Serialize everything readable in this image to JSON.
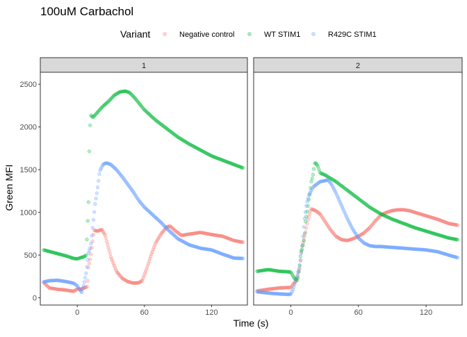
{
  "chart_data": {
    "type": "scatter",
    "title": "100uM Carbachol",
    "xlabel": "Time (s)",
    "ylabel": "Green MFI",
    "legend": {
      "title": "Variant",
      "position": "top"
    },
    "x_range": [
      -33,
      152
    ],
    "y_range": [
      -85,
      2640
    ],
    "x_ticks": [
      0,
      60,
      120
    ],
    "y_ticks": [
      0,
      500,
      1000,
      1500,
      2000,
      2500
    ],
    "grid": false,
    "panels": [
      {
        "label": "1",
        "series": [
          {
            "name": "Negative control",
            "color": "#F8766D",
            "curve": [
              [
                -30,
                180
              ],
              [
                -25,
                115
              ],
              [
                -18,
                100
              ],
              [
                -10,
                90
              ],
              [
                -3,
                75
              ],
              [
                0,
                105
              ],
              [
                3,
                100
              ],
              [
                6,
                115
              ],
              [
                9,
                130
              ],
              [
                10,
                350
              ],
              [
                12,
                480
              ],
              [
                15,
                790
              ],
              [
                18,
                780
              ],
              [
                22,
                800
              ],
              [
                25,
                730
              ],
              [
                30,
                480
              ],
              [
                35,
                310
              ],
              [
                40,
                230
              ],
              [
                45,
                190
              ],
              [
                50,
                172
              ],
              [
                55,
                175
              ],
              [
                58,
                200
              ],
              [
                62,
                340
              ],
              [
                66,
                500
              ],
              [
                70,
                640
              ],
              [
                75,
                750
              ],
              [
                80,
                830
              ],
              [
                83,
                840
              ],
              [
                88,
                780
              ],
              [
                93,
                730
              ],
              [
                100,
                745
              ],
              [
                110,
                765
              ],
              [
                120,
                740
              ],
              [
                130,
                720
              ],
              [
                140,
                670
              ],
              [
                148,
                650
              ]
            ]
          },
          {
            "name": "WT STIM1",
            "color": "#00BA38",
            "curve": [
              [
                -30,
                560
              ],
              [
                -20,
                525
              ],
              [
                -10,
                490
              ],
              [
                -3,
                460
              ],
              [
                0,
                455
              ],
              [
                3,
                470
              ],
              [
                6,
                480
              ],
              [
                8,
                500
              ],
              [
                9,
                820
              ],
              [
                10,
                1080
              ],
              [
                11,
                1880
              ],
              [
                12,
                2140
              ],
              [
                14,
                2110
              ],
              [
                18,
                2170
              ],
              [
                22,
                2230
              ],
              [
                28,
                2300
              ],
              [
                33,
                2370
              ],
              [
                38,
                2410
              ],
              [
                43,
                2420
              ],
              [
                47,
                2400
              ],
              [
                52,
                2330
              ],
              [
                60,
                2200
              ],
              [
                70,
                2080
              ],
              [
                80,
                1980
              ],
              [
                90,
                1880
              ],
              [
                100,
                1800
              ],
              [
                110,
                1730
              ],
              [
                120,
                1660
              ],
              [
                130,
                1610
              ],
              [
                140,
                1560
              ],
              [
                148,
                1520
              ]
            ]
          },
          {
            "name": "R429C STIM1",
            "color": "#619CFF",
            "curve": [
              [
                -30,
                185
              ],
              [
                -25,
                200
              ],
              [
                -18,
                205
              ],
              [
                -10,
                190
              ],
              [
                -3,
                170
              ],
              [
                0,
                140
              ],
              [
                2,
                100
              ],
              [
                4,
                60
              ],
              [
                6,
                160
              ],
              [
                8,
                300
              ],
              [
                10,
                520
              ],
              [
                12,
                600
              ],
              [
                14,
                850
              ],
              [
                16,
                1100
              ],
              [
                18,
                1270
              ],
              [
                20,
                1480
              ],
              [
                23,
                1560
              ],
              [
                26,
                1580
              ],
              [
                30,
                1560
              ],
              [
                35,
                1500
              ],
              [
                40,
                1420
              ],
              [
                45,
                1330
              ],
              [
                50,
                1240
              ],
              [
                55,
                1140
              ],
              [
                60,
                1060
              ],
              [
                65,
                1000
              ],
              [
                70,
                940
              ],
              [
                75,
                880
              ],
              [
                80,
                810
              ],
              [
                90,
                690
              ],
              [
                100,
                620
              ],
              [
                110,
                580
              ],
              [
                120,
                560
              ],
              [
                130,
                510
              ],
              [
                140,
                465
              ],
              [
                148,
                460
              ]
            ]
          }
        ]
      },
      {
        "label": "2",
        "series": [
          {
            "name": "Negative control",
            "color": "#F8766D",
            "curve": [
              [
                -30,
                80
              ],
              [
                -20,
                100
              ],
              [
                -10,
                115
              ],
              [
                -3,
                120
              ],
              [
                0,
                120
              ],
              [
                2,
                160
              ],
              [
                4,
                190
              ],
              [
                6,
                250
              ],
              [
                8,
                350
              ],
              [
                9,
                500
              ],
              [
                10,
                600
              ],
              [
                12,
                700
              ],
              [
                15,
                900
              ],
              [
                18,
                1040
              ],
              [
                22,
                1020
              ],
              [
                26,
                980
              ],
              [
                30,
                900
              ],
              [
                35,
                800
              ],
              [
                40,
                720
              ],
              [
                45,
                680
              ],
              [
                50,
                670
              ],
              [
                55,
                690
              ],
              [
                60,
                720
              ],
              [
                65,
                760
              ],
              [
                70,
                820
              ],
              [
                75,
                900
              ],
              [
                80,
                970
              ],
              [
                85,
                1000
              ],
              [
                90,
                1020
              ],
              [
                95,
                1030
              ],
              [
                100,
                1030
              ],
              [
                105,
                1020
              ],
              [
                110,
                1000
              ],
              [
                115,
                980
              ],
              [
                120,
                960
              ],
              [
                130,
                920
              ],
              [
                140,
                870
              ],
              [
                148,
                850
              ]
            ]
          },
          {
            "name": "WT STIM1",
            "color": "#00BA38",
            "curve": [
              [
                -30,
                310
              ],
              [
                -25,
                320
              ],
              [
                -20,
                330
              ],
              [
                -15,
                320
              ],
              [
                -10,
                310
              ],
              [
                -3,
                305
              ],
              [
                0,
                300
              ],
              [
                3,
                230
              ],
              [
                6,
                200
              ],
              [
                8,
                400
              ],
              [
                9,
                550
              ],
              [
                10,
                560
              ],
              [
                12,
                700
              ],
              [
                13,
                890
              ],
              [
                15,
                1050
              ],
              [
                16,
                1150
              ],
              [
                17,
                1230
              ],
              [
                18,
                1350
              ],
              [
                19,
                1400
              ],
              [
                20,
                1460
              ],
              [
                21,
                1570
              ],
              [
                22,
                1580
              ],
              [
                24,
                1540
              ],
              [
                26,
                1460
              ],
              [
                30,
                1440
              ],
              [
                35,
                1400
              ],
              [
                40,
                1360
              ],
              [
                45,
                1310
              ],
              [
                50,
                1260
              ],
              [
                55,
                1210
              ],
              [
                60,
                1160
              ],
              [
                70,
                1060
              ],
              [
                80,
                980
              ],
              [
                90,
                920
              ],
              [
                100,
                870
              ],
              [
                110,
                820
              ],
              [
                120,
                780
              ],
              [
                130,
                740
              ],
              [
                140,
                700
              ],
              [
                148,
                680
              ]
            ]
          },
          {
            "name": "R429C STIM1",
            "color": "#619CFF",
            "curve": [
              [
                -30,
                70
              ],
              [
                -20,
                55
              ],
              [
                -10,
                45
              ],
              [
                -3,
                40
              ],
              [
                0,
                40
              ],
              [
                2,
                100
              ],
              [
                4,
                180
              ],
              [
                6,
                280
              ],
              [
                8,
                380
              ],
              [
                10,
                600
              ],
              [
                12,
                900
              ],
              [
                14,
                1100
              ],
              [
                16,
                1200
              ],
              [
                18,
                1250
              ],
              [
                20,
                1300
              ],
              [
                23,
                1330
              ],
              [
                26,
                1360
              ],
              [
                30,
                1370
              ],
              [
                33,
                1380
              ],
              [
                36,
                1330
              ],
              [
                40,
                1230
              ],
              [
                45,
                1080
              ],
              [
                50,
                930
              ],
              [
                55,
                800
              ],
              [
                60,
                700
              ],
              [
                65,
                640
              ],
              [
                70,
                610
              ],
              [
                75,
                600
              ],
              [
                80,
                600
              ],
              [
                90,
                590
              ],
              [
                100,
                580
              ],
              [
                110,
                570
              ],
              [
                120,
                560
              ],
              [
                130,
                540
              ],
              [
                140,
                500
              ],
              [
                148,
                470
              ]
            ]
          }
        ]
      }
    ]
  }
}
